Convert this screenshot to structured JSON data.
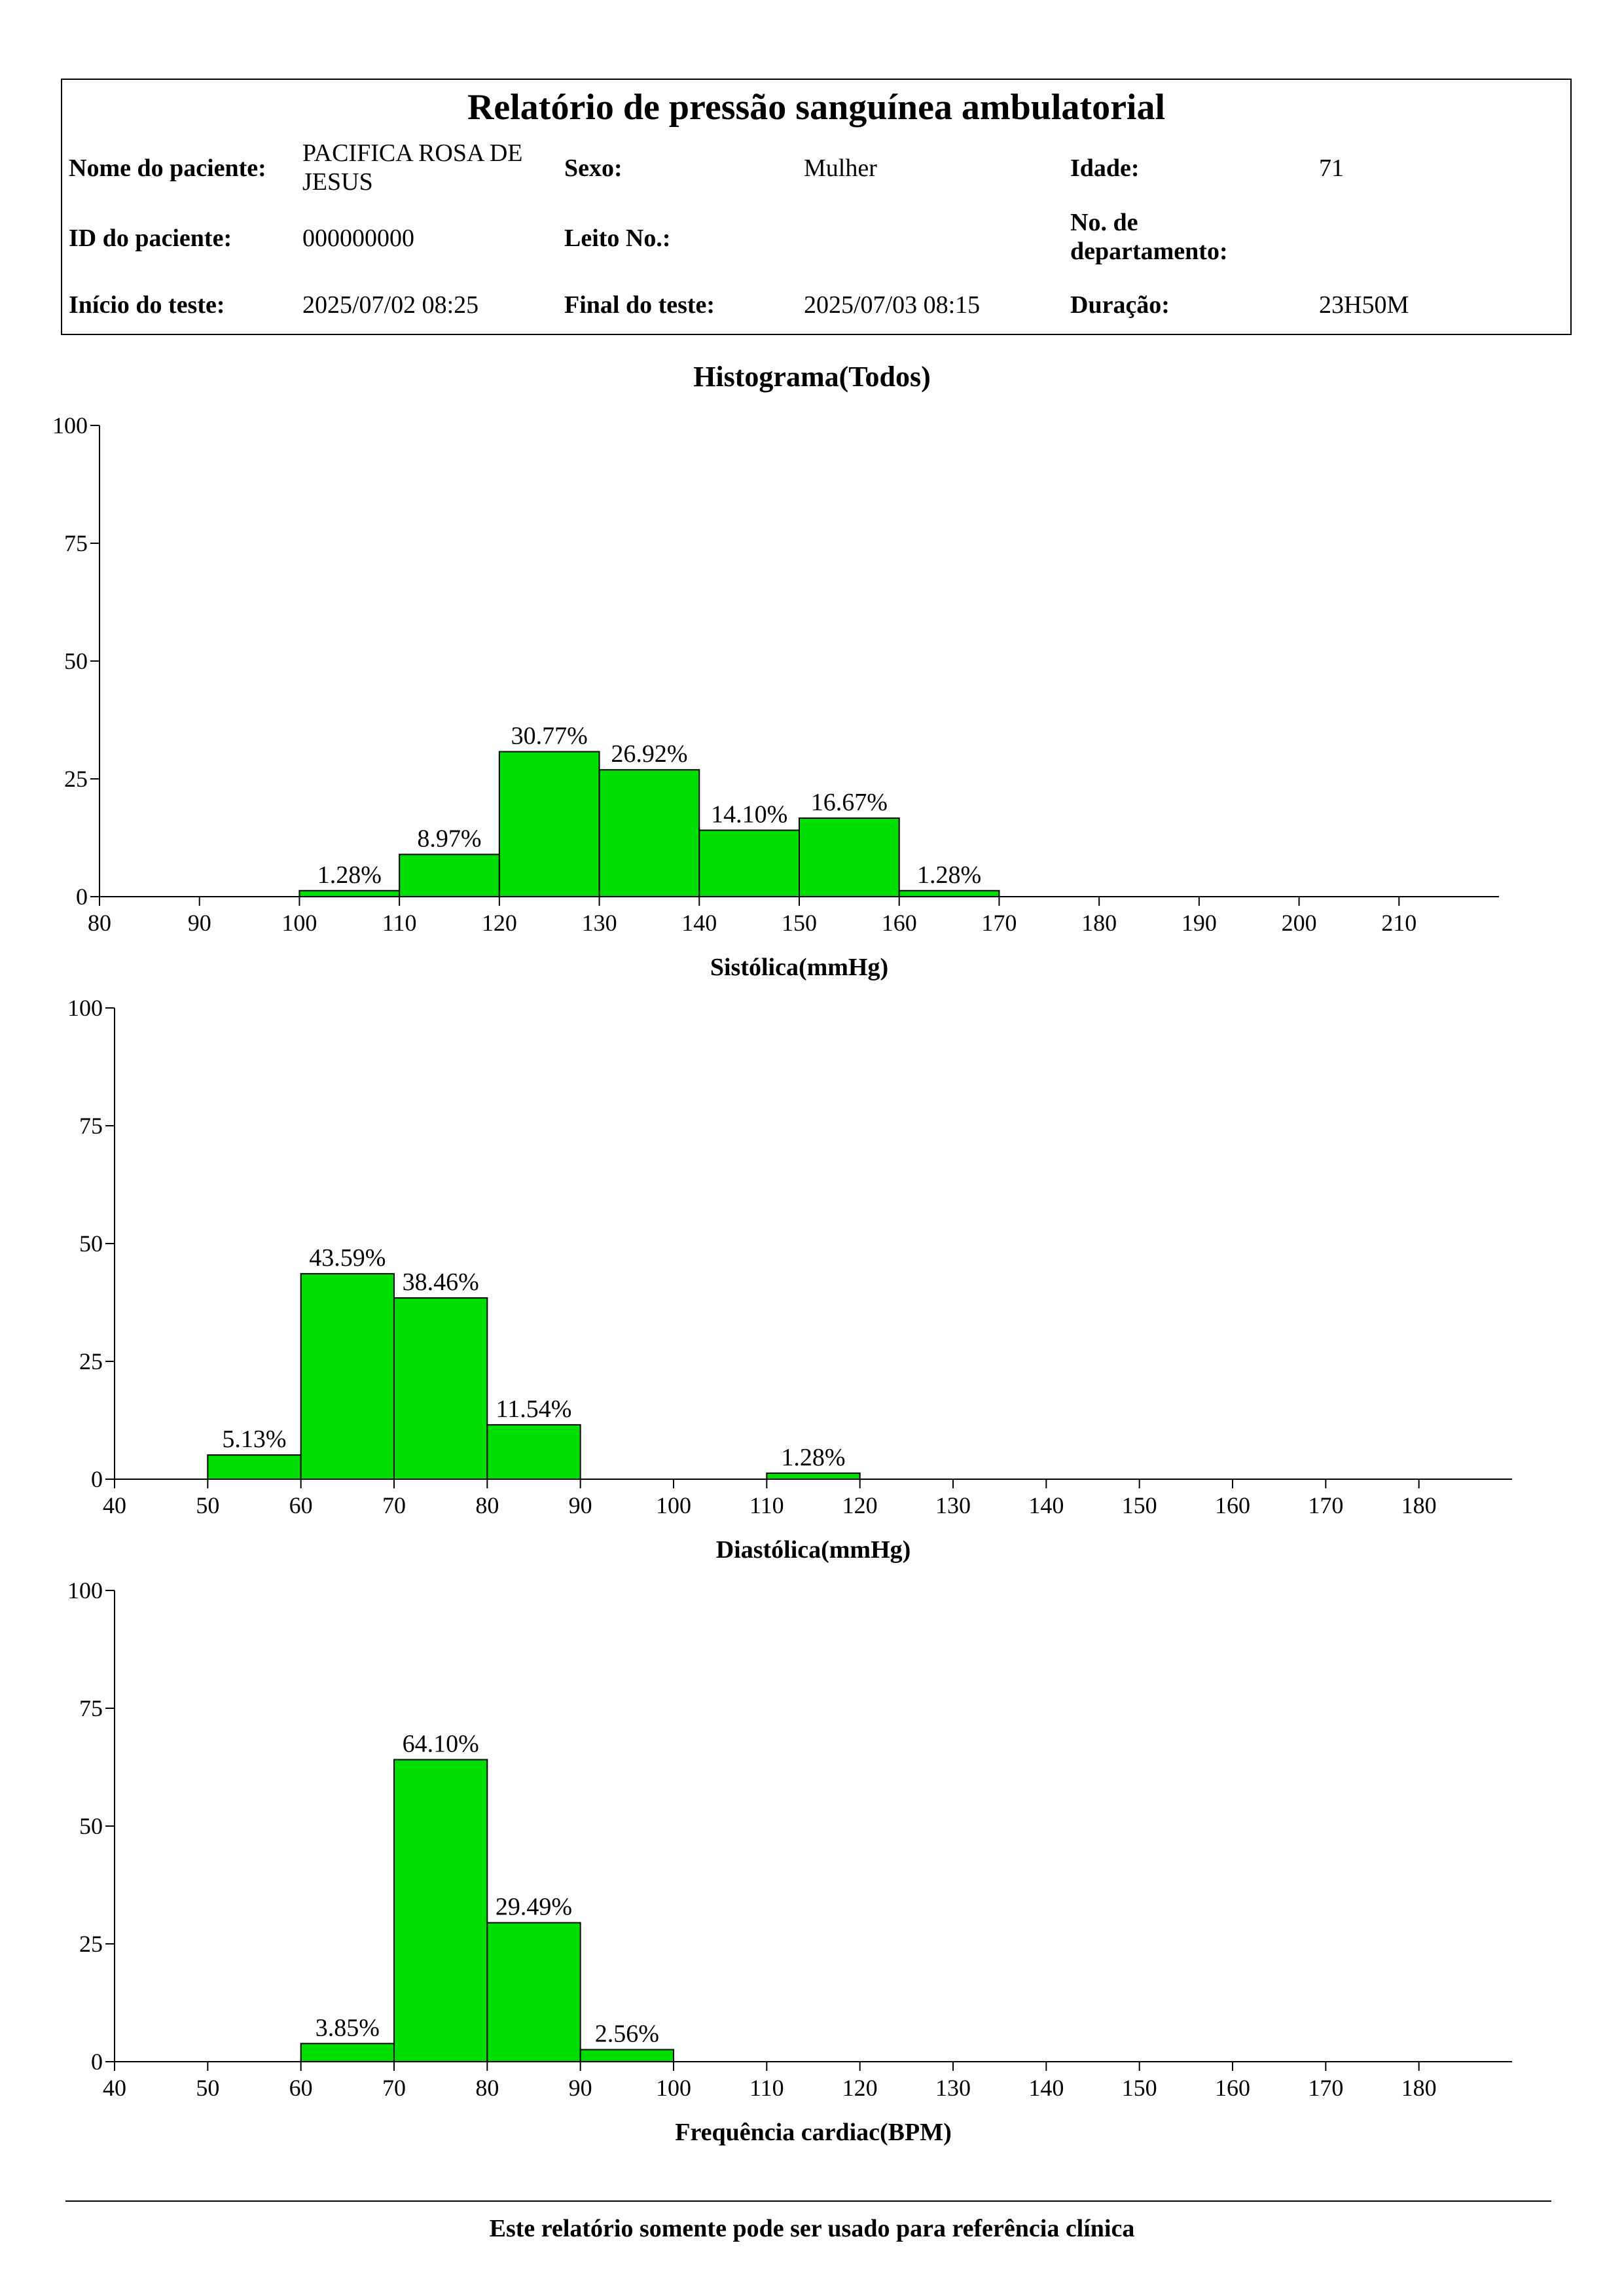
{
  "header": {
    "title": "Relatório de pressão sanguínea ambulatorial",
    "patient_name_label": "Nome do paciente:",
    "patient_name": "PACIFICA ROSA DE JESUS",
    "sex_label": "Sexo:",
    "sex": "Mulher",
    "age_label": "Idade:",
    "age": "71",
    "patient_id_label": "ID do paciente:",
    "patient_id": "000000000",
    "bed_label": "Leito No.:",
    "bed": "",
    "department_label": "No. de departamento:",
    "department": "",
    "start_label": "Início do teste:",
    "start": "2025/07/02 08:25",
    "end_label": "Final do teste:",
    "end": "2025/07/03 08:15",
    "duration_label": "Duração:",
    "duration": "23H50M"
  },
  "section_title": "Histograma(Todos)",
  "footer": "Este relatório somente pode ser usado para referência clínica",
  "colors": {
    "bar_fill": "#00dd00",
    "bar_stroke": "#000000"
  },
  "chart_data": [
    {
      "type": "bar",
      "title": "",
      "xlabel": "Sistólica(mmHg)",
      "ylabel": "",
      "xlim": [
        80,
        220
      ],
      "ylim": [
        0,
        100
      ],
      "xticks": [
        80,
        90,
        100,
        110,
        120,
        130,
        140,
        150,
        160,
        170,
        180,
        190,
        200,
        210
      ],
      "yticks": [
        0,
        25,
        50,
        75,
        100
      ],
      "bins": [
        {
          "from": 100,
          "to": 110,
          "value": 1.28,
          "label": "1.28%"
        },
        {
          "from": 110,
          "to": 120,
          "value": 8.97,
          "label": "8.97%"
        },
        {
          "from": 120,
          "to": 130,
          "value": 30.77,
          "label": "30.77%"
        },
        {
          "from": 130,
          "to": 140,
          "value": 26.92,
          "label": "26.92%"
        },
        {
          "from": 140,
          "to": 150,
          "value": 14.1,
          "label": "14.10%"
        },
        {
          "from": 150,
          "to": 160,
          "value": 16.67,
          "label": "16.67%"
        },
        {
          "from": 160,
          "to": 170,
          "value": 1.28,
          "label": "1.28%"
        }
      ]
    },
    {
      "type": "bar",
      "title": "",
      "xlabel": "Diastólica(mmHg)",
      "ylabel": "",
      "xlim": [
        40,
        190
      ],
      "ylim": [
        0,
        100
      ],
      "xticks": [
        40,
        50,
        60,
        70,
        80,
        90,
        100,
        110,
        120,
        130,
        140,
        150,
        160,
        170,
        180
      ],
      "yticks": [
        0,
        25,
        50,
        75,
        100
      ],
      "bins": [
        {
          "from": 50,
          "to": 60,
          "value": 5.13,
          "label": "5.13%"
        },
        {
          "from": 60,
          "to": 70,
          "value": 43.59,
          "label": "43.59%"
        },
        {
          "from": 70,
          "to": 80,
          "value": 38.46,
          "label": "38.46%"
        },
        {
          "from": 80,
          "to": 90,
          "value": 11.54,
          "label": "11.54%"
        },
        {
          "from": 110,
          "to": 120,
          "value": 1.28,
          "label": "1.28%"
        }
      ]
    },
    {
      "type": "bar",
      "title": "",
      "xlabel": "Frequência cardiac(BPM)",
      "ylabel": "",
      "xlim": [
        40,
        190
      ],
      "ylim": [
        0,
        100
      ],
      "xticks": [
        40,
        50,
        60,
        70,
        80,
        90,
        100,
        110,
        120,
        130,
        140,
        150,
        160,
        170,
        180
      ],
      "yticks": [
        0,
        25,
        50,
        75,
        100
      ],
      "bins": [
        {
          "from": 60,
          "to": 70,
          "value": 3.85,
          "label": "3.85%"
        },
        {
          "from": 70,
          "to": 80,
          "value": 64.1,
          "label": "64.10%"
        },
        {
          "from": 80,
          "to": 90,
          "value": 29.49,
          "label": "29.49%"
        },
        {
          "from": 90,
          "to": 100,
          "value": 2.56,
          "label": "2.56%"
        }
      ]
    }
  ]
}
